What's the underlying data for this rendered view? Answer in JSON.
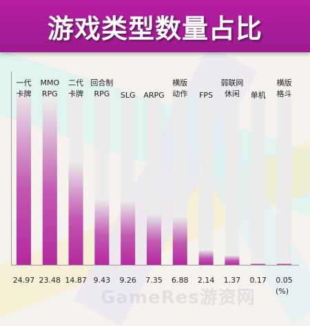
{
  "title": "游戏类型数量占比",
  "unit_label": "(%)",
  "watermark": "GameRes游资网",
  "colors": {
    "title_bg": "#a61d97",
    "bar_fill": "#b4289e",
    "bar_track": "#ececec"
  },
  "chart_data": {
    "type": "bar",
    "title": "游戏类型数量占比",
    "categories": [
      [
        "一代",
        "卡牌"
      ],
      [
        "MMO",
        "RPG"
      ],
      [
        "二代",
        "卡牌"
      ],
      [
        "回合制",
        "RPG"
      ],
      [
        "SLG"
      ],
      [
        "ARPG"
      ],
      [
        "横版",
        "动作"
      ],
      [
        "FPS"
      ],
      [
        "弱联网",
        "休闲"
      ],
      [
        "单机"
      ],
      [
        "横版",
        "格斗"
      ]
    ],
    "values": [
      24.97,
      23.48,
      14.87,
      9.43,
      9.26,
      7.35,
      6.88,
      2.14,
      1.37,
      0.17,
      0.05
    ],
    "value_labels": [
      "24.97",
      "23.48",
      "14.87",
      "9.43",
      "9.26",
      "7.35",
      "6.88",
      "2.14",
      "1.37",
      "0.17",
      "0.05"
    ],
    "ylim": [
      0,
      24.97
    ],
    "ylabel": "",
    "xlabel": "",
    "grid": false,
    "legend": "none"
  }
}
